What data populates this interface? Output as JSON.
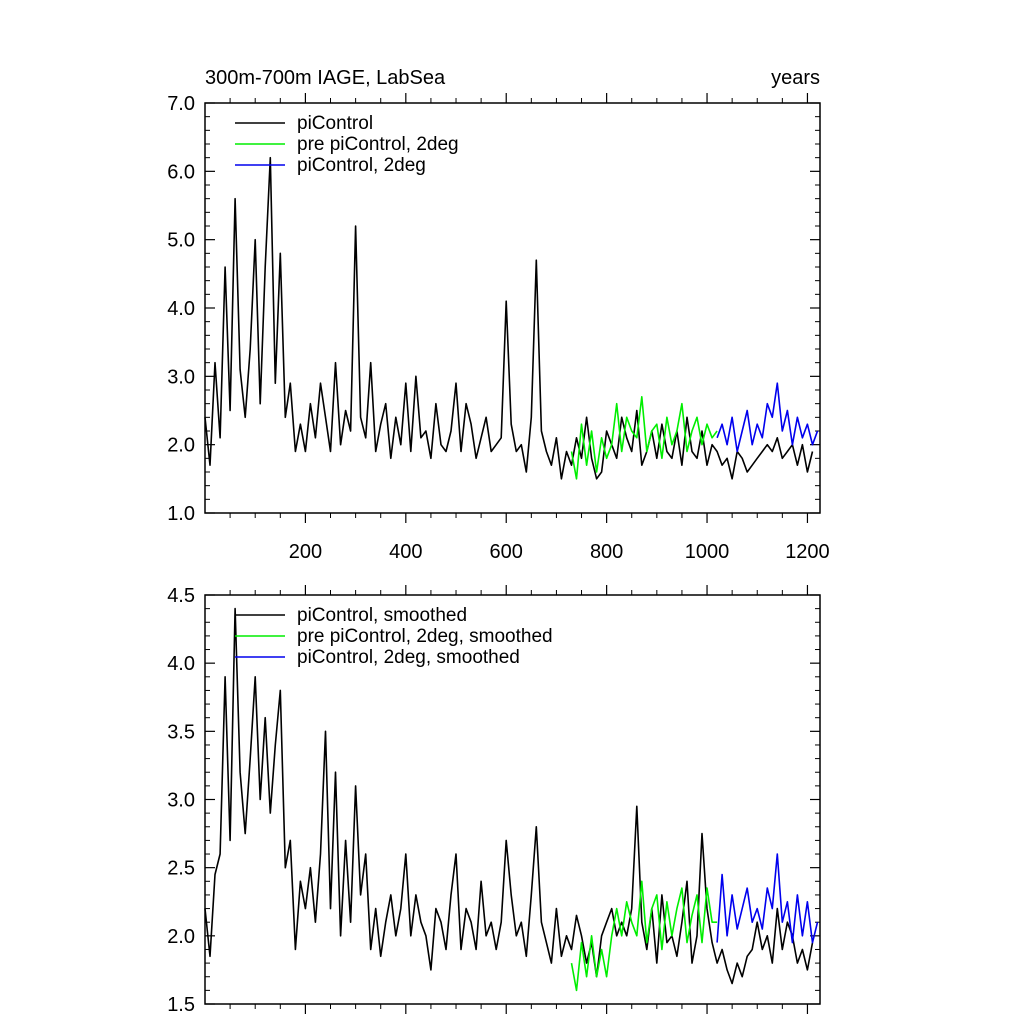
{
  "colors": {
    "background": "#ffffff",
    "axis": "#000000",
    "series_black": "#000000",
    "series_green": "#00ee00",
    "series_blue": "#0000ee"
  },
  "chart_data": [
    {
      "type": "line",
      "title_left": "300m-700m IAGE, LabSea",
      "title_right": "years",
      "xlabel": "",
      "ylabel": "",
      "xlim": [
        0,
        1225
      ],
      "ylim": [
        1.0,
        7.0
      ],
      "x_ticks": [
        200,
        400,
        600,
        800,
        1000,
        1200
      ],
      "x_tick_labels": [
        "200",
        "400",
        "600",
        "800",
        "1000",
        "1200"
      ],
      "y_ticks": [
        1.0,
        2.0,
        3.0,
        4.0,
        5.0,
        6.0,
        7.0
      ],
      "y_tick_labels": [
        "1.0",
        "2.0",
        "3.0",
        "4.0",
        "5.0",
        "6.0",
        "7.0"
      ],
      "grid": false,
      "legend_position": "top-left",
      "series": [
        {
          "name": "piControl",
          "color": "#000000",
          "x": [
            0,
            10,
            20,
            30,
            40,
            50,
            60,
            70,
            80,
            90,
            100,
            110,
            120,
            130,
            140,
            150,
            160,
            170,
            180,
            190,
            200,
            210,
            220,
            230,
            240,
            250,
            260,
            270,
            280,
            290,
            300,
            310,
            320,
            330,
            340,
            350,
            360,
            370,
            380,
            390,
            400,
            410,
            420,
            430,
            440,
            450,
            460,
            470,
            480,
            490,
            500,
            510,
            520,
            530,
            540,
            550,
            560,
            570,
            580,
            590,
            600,
            610,
            620,
            630,
            640,
            650,
            660,
            670,
            680,
            690,
            700,
            710,
            720,
            730,
            740,
            750,
            760,
            770,
            780,
            790,
            800,
            810,
            820,
            830,
            840,
            850,
            860,
            870,
            880,
            890,
            900,
            910,
            920,
            930,
            940,
            950,
            960,
            970,
            980,
            990,
            1000,
            1010,
            1020,
            1030,
            1040,
            1050,
            1060,
            1070,
            1080,
            1090,
            1100,
            1110,
            1120,
            1130,
            1140,
            1150,
            1160,
            1170,
            1180,
            1190,
            1200,
            1210
          ],
          "values": [
            2.4,
            1.7,
            3.2,
            2.1,
            4.6,
            2.5,
            5.6,
            3.1,
            2.4,
            3.4,
            5.0,
            2.6,
            4.6,
            6.2,
            2.9,
            4.8,
            2.4,
            2.9,
            1.9,
            2.3,
            1.9,
            2.6,
            2.1,
            2.9,
            2.4,
            1.9,
            3.2,
            2.0,
            2.5,
            2.2,
            5.2,
            2.4,
            2.1,
            3.2,
            1.9,
            2.3,
            2.6,
            1.8,
            2.4,
            2.0,
            2.9,
            1.9,
            3.0,
            2.1,
            2.2,
            1.8,
            2.6,
            2.0,
            1.9,
            2.2,
            2.9,
            1.9,
            2.6,
            2.3,
            1.8,
            2.1,
            2.4,
            1.9,
            2.0,
            2.1,
            4.1,
            2.3,
            1.9,
            2.0,
            1.6,
            2.4,
            4.7,
            2.2,
            1.9,
            1.7,
            2.1,
            1.5,
            1.9,
            1.7,
            2.1,
            1.8,
            2.4,
            1.8,
            1.5,
            1.6,
            2.2,
            2.0,
            1.8,
            2.4,
            2.1,
            1.9,
            2.5,
            1.7,
            1.9,
            2.2,
            1.8,
            2.3,
            1.9,
            1.8,
            2.2,
            1.7,
            2.4,
            1.9,
            1.8,
            2.2,
            1.7,
            2.0,
            1.9,
            1.7,
            1.8,
            1.5,
            1.9,
            1.8,
            1.6,
            1.7,
            1.8,
            1.9,
            2.0,
            1.9,
            2.1,
            1.8,
            1.9,
            2.0,
            1.7,
            2.0,
            1.6,
            1.9
          ]
        },
        {
          "name": "pre piControl, 2deg",
          "color": "#00ee00",
          "x": [
            730,
            740,
            750,
            760,
            770,
            780,
            790,
            800,
            810,
            820,
            830,
            840,
            850,
            860,
            870,
            880,
            890,
            900,
            910,
            920,
            930,
            940,
            950,
            960,
            970,
            980,
            990,
            1000,
            1010,
            1020
          ],
          "values": [
            1.9,
            1.5,
            2.3,
            1.7,
            2.2,
            1.6,
            2.1,
            1.8,
            2.0,
            2.6,
            1.9,
            2.4,
            2.2,
            2.1,
            2.7,
            1.9,
            2.2,
            2.3,
            1.8,
            2.4,
            2.0,
            2.2,
            2.6,
            1.9,
            2.2,
            2.4,
            2.0,
            2.3,
            2.1,
            2.2
          ]
        },
        {
          "name": "piControl, 2deg",
          "color": "#0000ee",
          "x": [
            1020,
            1030,
            1040,
            1050,
            1060,
            1070,
            1080,
            1090,
            1100,
            1110,
            1120,
            1130,
            1140,
            1150,
            1160,
            1170,
            1180,
            1190,
            1200,
            1210,
            1220
          ],
          "values": [
            2.1,
            2.3,
            2.0,
            2.4,
            1.9,
            2.2,
            2.5,
            2.0,
            2.3,
            2.1,
            2.6,
            2.4,
            2.9,
            2.2,
            2.5,
            2.0,
            2.4,
            2.1,
            2.3,
            2.0,
            2.2
          ]
        }
      ]
    },
    {
      "type": "line",
      "xlabel": "",
      "ylabel": "",
      "xlim": [
        0,
        1225
      ],
      "ylim": [
        1.5,
        4.5
      ],
      "y_ticks": [
        1.5,
        2.0,
        2.5,
        3.0,
        3.5,
        4.0,
        4.5
      ],
      "y_tick_labels": [
        "1.5",
        "2.0",
        "2.5",
        "3.0",
        "3.5",
        "4.0",
        "4.5"
      ],
      "grid": false,
      "legend_position": "top-left",
      "series": [
        {
          "name": "piControl, smoothed",
          "color": "#000000",
          "x": [
            0,
            10,
            20,
            30,
            40,
            50,
            60,
            70,
            80,
            90,
            100,
            110,
            120,
            130,
            140,
            150,
            160,
            170,
            180,
            190,
            200,
            210,
            220,
            230,
            240,
            250,
            260,
            270,
            280,
            290,
            300,
            310,
            320,
            330,
            340,
            350,
            360,
            370,
            380,
            390,
            400,
            410,
            420,
            430,
            440,
            450,
            460,
            470,
            480,
            490,
            500,
            510,
            520,
            530,
            540,
            550,
            560,
            570,
            580,
            590,
            600,
            610,
            620,
            630,
            640,
            650,
            660,
            670,
            680,
            690,
            700,
            710,
            720,
            730,
            740,
            750,
            760,
            770,
            780,
            790,
            800,
            810,
            820,
            830,
            840,
            850,
            860,
            870,
            880,
            890,
            900,
            910,
            920,
            930,
            940,
            950,
            960,
            970,
            980,
            990,
            1000,
            1010,
            1020,
            1030,
            1040,
            1050,
            1060,
            1070,
            1080,
            1090,
            1100,
            1110,
            1120,
            1130,
            1140,
            1150,
            1160,
            1170,
            1180,
            1190,
            1200,
            1210
          ],
          "values": [
            2.2,
            1.85,
            2.45,
            2.6,
            3.9,
            2.7,
            4.4,
            3.2,
            2.75,
            3.3,
            3.9,
            3.0,
            3.6,
            2.9,
            3.4,
            3.8,
            2.5,
            2.7,
            1.9,
            2.4,
            2.2,
            2.5,
            2.1,
            2.6,
            3.5,
            2.2,
            3.2,
            2.0,
            2.7,
            2.1,
            3.1,
            2.3,
            2.6,
            1.9,
            2.2,
            1.85,
            2.1,
            2.3,
            2.0,
            2.2,
            2.6,
            2.0,
            2.3,
            2.1,
            2.0,
            1.75,
            2.2,
            2.1,
            1.9,
            2.3,
            2.6,
            1.9,
            2.2,
            2.1,
            1.9,
            2.4,
            2.0,
            2.1,
            1.9,
            2.1,
            2.7,
            2.3,
            2.0,
            2.1,
            1.85,
            2.3,
            2.8,
            2.1,
            1.95,
            1.8,
            2.2,
            1.85,
            2.0,
            1.9,
            2.15,
            2.0,
            1.8,
            1.95,
            1.7,
            2.0,
            2.1,
            2.2,
            2.0,
            2.1,
            2.0,
            2.2,
            2.95,
            2.1,
            1.9,
            2.2,
            1.8,
            2.3,
            1.95,
            2.0,
            1.85,
            2.1,
            2.4,
            1.8,
            2.0,
            2.75,
            2.2,
            1.95,
            1.8,
            1.9,
            1.75,
            1.65,
            1.8,
            1.7,
            1.85,
            1.9,
            2.1,
            1.9,
            2.0,
            1.8,
            2.2,
            1.9,
            2.1,
            2.0,
            1.8,
            1.9,
            1.75,
            1.95
          ]
        },
        {
          "name": "pre piControl, 2deg, smoothed",
          "color": "#00ee00",
          "x": [
            730,
            740,
            750,
            760,
            770,
            780,
            790,
            800,
            810,
            820,
            830,
            840,
            850,
            860,
            870,
            880,
            890,
            900,
            910,
            920,
            930,
            940,
            950,
            960,
            970,
            980,
            990,
            1000,
            1010,
            1020
          ],
          "values": [
            1.8,
            1.6,
            1.95,
            1.7,
            2.0,
            1.7,
            1.9,
            1.7,
            2.0,
            2.2,
            2.0,
            2.25,
            2.1,
            2.0,
            2.4,
            1.95,
            2.2,
            2.3,
            1.9,
            2.25,
            2.0,
            2.2,
            2.35,
            1.95,
            2.15,
            2.3,
            1.95,
            2.35,
            2.1,
            2.1
          ]
        },
        {
          "name": "piControl, 2deg, smoothed",
          "color": "#0000ee",
          "x": [
            1020,
            1030,
            1040,
            1050,
            1060,
            1070,
            1080,
            1090,
            1100,
            1110,
            1120,
            1130,
            1140,
            1150,
            1160,
            1170,
            1180,
            1190,
            1200,
            1210,
            1220
          ],
          "values": [
            1.95,
            2.45,
            2.0,
            2.3,
            2.05,
            2.2,
            2.35,
            2.1,
            2.2,
            2.05,
            2.35,
            2.2,
            2.6,
            2.1,
            2.25,
            1.95,
            2.3,
            2.0,
            2.25,
            1.95,
            2.1
          ]
        }
      ]
    }
  ]
}
